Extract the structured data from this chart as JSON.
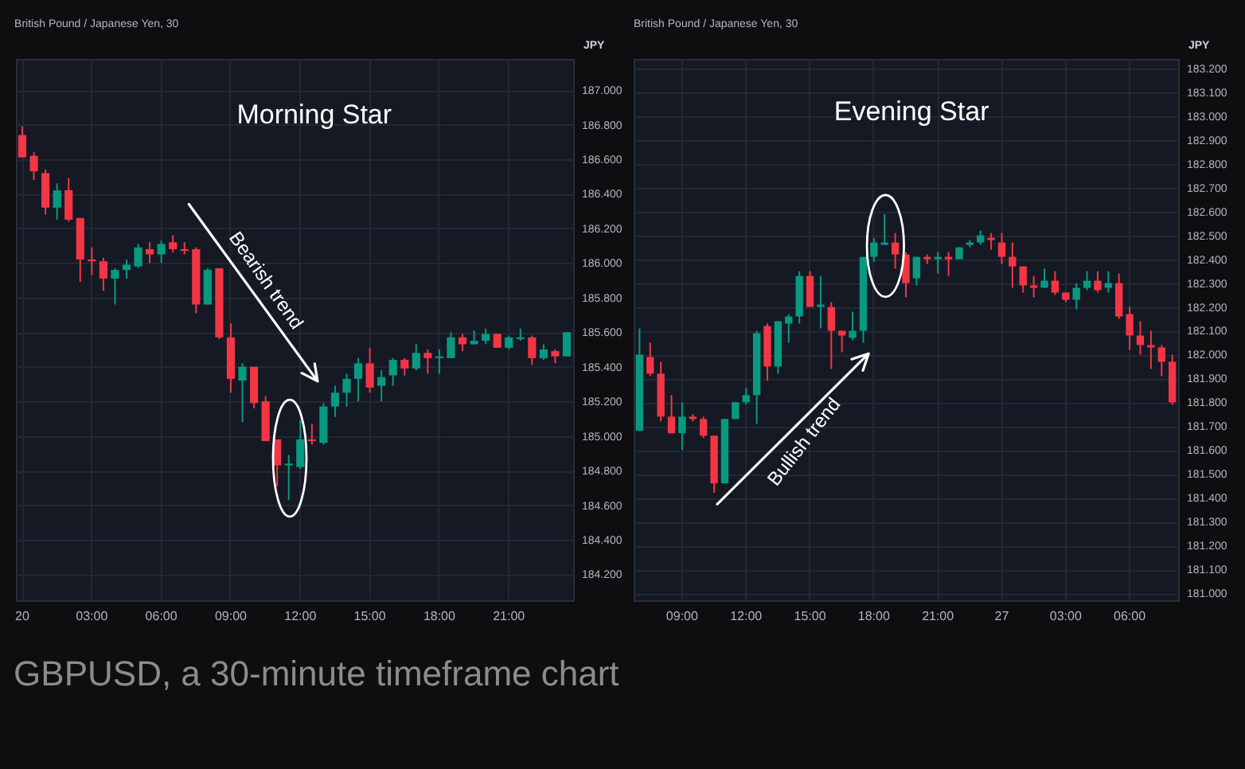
{
  "chart_data": [
    {
      "type": "candlestick",
      "subtitle": "British Pound / Japanese Yen, 30",
      "ylabel": "JPY",
      "grid": true,
      "ylim": [
        184.05,
        187.18
      ],
      "yticks": [
        {
          "value": 184.2,
          "label": "184.200"
        },
        {
          "value": 184.4,
          "label": "184.400"
        },
        {
          "value": 184.6,
          "label": "184.600"
        },
        {
          "value": 184.8,
          "label": "184.800"
        },
        {
          "value": 185,
          "label": "185.000"
        },
        {
          "value": 185.2,
          "label": "185.200"
        },
        {
          "value": 185.4,
          "label": "185.400"
        },
        {
          "value": 185.6,
          "label": "185.600"
        },
        {
          "value": 185.8,
          "label": "185.800"
        },
        {
          "value": 186,
          "label": "186.000"
        },
        {
          "value": 186.2,
          "label": "186.200"
        },
        {
          "value": 186.4,
          "label": "186.400"
        },
        {
          "value": 186.6,
          "label": "186.600"
        },
        {
          "value": 186.8,
          "label": "186.800"
        },
        {
          "value": 187,
          "label": "187.000"
        }
      ],
      "categories": [
        "20",
        null,
        null,
        null,
        null,
        null,
        "03:00",
        null,
        null,
        null,
        null,
        null,
        "06:00",
        null,
        null,
        null,
        null,
        null,
        "09:00",
        null,
        null,
        null,
        null,
        null,
        "12:00",
        null,
        null,
        null,
        null,
        null,
        "15:00",
        null,
        null,
        null,
        null,
        null,
        "18:00",
        null,
        null,
        null,
        null,
        null,
        "21:00",
        null,
        null,
        null,
        null,
        null
      ],
      "ohlc": [
        [
          186.74,
          186.79,
          186.61,
          186.61
        ],
        [
          186.62,
          186.64,
          186.48,
          186.53
        ],
        [
          186.52,
          186.54,
          186.28,
          186.32
        ],
        [
          186.32,
          186.46,
          186.25,
          186.42
        ],
        [
          186.42,
          186.49,
          186.24,
          186.25
        ],
        [
          186.26,
          186.26,
          185.89,
          186.02
        ],
        [
          186.02,
          186.09,
          185.93,
          186.01
        ],
        [
          186.01,
          186.03,
          185.84,
          185.91
        ],
        [
          185.91,
          185.97,
          185.76,
          185.96
        ],
        [
          185.96,
          186.02,
          185.91,
          185.99
        ],
        [
          185.98,
          186.11,
          185.97,
          186.09
        ],
        [
          186.08,
          186.12,
          186.0,
          186.05
        ],
        [
          186.05,
          186.13,
          186.0,
          186.11
        ],
        [
          186.12,
          186.16,
          186.06,
          186.08
        ],
        [
          186.08,
          186.12,
          186.05,
          186.07
        ],
        [
          186.08,
          186.09,
          185.71,
          185.76
        ],
        [
          185.76,
          185.97,
          185.76,
          185.96
        ],
        [
          185.97,
          185.97,
          185.56,
          185.57
        ],
        [
          185.57,
          185.65,
          185.25,
          185.33
        ],
        [
          185.32,
          185.42,
          185.08,
          185.4
        ],
        [
          185.4,
          185.4,
          185.16,
          185.19
        ],
        [
          185.2,
          185.23,
          184.97,
          184.97
        ],
        [
          184.98,
          184.98,
          184.71,
          184.83
        ],
        [
          184.83,
          184.89,
          184.63,
          184.84
        ],
        [
          184.82,
          185.09,
          184.81,
          184.98
        ],
        [
          184.98,
          185.07,
          184.95,
          184.97
        ],
        [
          184.96,
          185.19,
          184.95,
          185.17
        ],
        [
          185.17,
          185.29,
          185.11,
          185.25
        ],
        [
          185.25,
          185.36,
          185.17,
          185.33
        ],
        [
          185.33,
          185.45,
          185.2,
          185.42
        ],
        [
          185.42,
          185.51,
          185.25,
          185.28
        ],
        [
          185.29,
          185.38,
          185.2,
          185.34
        ],
        [
          185.35,
          185.45,
          185.29,
          185.44
        ],
        [
          185.44,
          185.45,
          185.35,
          185.39
        ],
        [
          185.39,
          185.53,
          185.38,
          185.48
        ],
        [
          185.48,
          185.5,
          185.36,
          185.45
        ],
        [
          185.45,
          185.5,
          185.36,
          185.46
        ],
        [
          185.45,
          185.6,
          185.45,
          185.57
        ],
        [
          185.57,
          185.59,
          185.49,
          185.53
        ],
        [
          185.53,
          185.61,
          185.53,
          185.55
        ],
        [
          185.55,
          185.62,
          185.53,
          185.59
        ],
        [
          185.59,
          185.59,
          185.51,
          185.51
        ],
        [
          185.51,
          185.58,
          185.5,
          185.57
        ],
        [
          185.56,
          185.62,
          185.55,
          185.57
        ],
        [
          185.57,
          185.58,
          185.41,
          185.45
        ],
        [
          185.45,
          185.53,
          185.44,
          185.5
        ],
        [
          185.49,
          185.5,
          185.42,
          185.46
        ],
        [
          185.46,
          185.6,
          185.46,
          185.6
        ]
      ],
      "colors": [
        "#f23645",
        "#f23645",
        "#f23645",
        "#089981",
        "#f23645",
        "#f23645",
        "#f23645",
        "#f23645",
        "#089981",
        "#089981",
        "#089981",
        "#f23645",
        "#089981",
        "#f23645",
        "#f23645",
        "#f23645",
        "#089981",
        "#f23645",
        "#f23645",
        "#089981",
        "#f23645",
        "#f23645",
        "#f23645",
        "#089981",
        "#089981",
        "#f23645",
        "#089981",
        "#089981",
        "#089981",
        "#089981",
        "#f23645",
        "#089981",
        "#089981",
        "#f23645",
        "#089981",
        "#f23645",
        "#089981",
        "#089981",
        "#f23645",
        "#089981",
        "#089981",
        "#f23645",
        "#089981",
        "#089981",
        "#f23645",
        "#089981",
        "#f23645",
        "#089981"
      ],
      "annotations": [
        "Morning Star",
        "Bearish trend",
        "GBPUSD, a 30-minute timeframe chart"
      ]
    },
    {
      "type": "candlestick",
      "subtitle": "British Pound / Japanese Yen, 30",
      "ylabel": "JPY",
      "grid": true,
      "ylim": [
        180.97,
        183.24
      ],
      "yticks": [
        {
          "value": 181,
          "label": "181.000"
        },
        {
          "value": 181.1,
          "label": "181.100"
        },
        {
          "value": 181.2,
          "label": "181.200"
        },
        {
          "value": 181.3,
          "label": "181.300"
        },
        {
          "value": 181.4,
          "label": "181.400"
        },
        {
          "value": 181.5,
          "label": "181.500"
        },
        {
          "value": 181.6,
          "label": "181.600"
        },
        {
          "value": 181.7,
          "label": "181.700"
        },
        {
          "value": 181.8,
          "label": "181.800"
        },
        {
          "value": 181.9,
          "label": "181.900"
        },
        {
          "value": 182,
          "label": "182.000"
        },
        {
          "value": 182.1,
          "label": "182.100"
        },
        {
          "value": 182.2,
          "label": "182.200"
        },
        {
          "value": 182.3,
          "label": "182.300"
        },
        {
          "value": 182.4,
          "label": "182.400"
        },
        {
          "value": 182.5,
          "label": "182.500"
        },
        {
          "value": 182.6,
          "label": "182.600"
        },
        {
          "value": 182.7,
          "label": "182.700"
        },
        {
          "value": 182.8,
          "label": "182.800"
        },
        {
          "value": 182.9,
          "label": "182.900"
        },
        {
          "value": 183,
          "label": "183.000"
        },
        {
          "value": 183.1,
          "label": "183.100"
        },
        {
          "value": 183.2,
          "label": "183.200"
        }
      ],
      "categories": [
        null,
        null,
        null,
        null,
        "09:00",
        null,
        null,
        null,
        null,
        null,
        "12:00",
        null,
        null,
        null,
        null,
        null,
        "15:00",
        null,
        null,
        null,
        null,
        null,
        "18:00",
        null,
        null,
        null,
        null,
        null,
        "21:00",
        null,
        null,
        null,
        null,
        null,
        "27",
        null,
        null,
        null,
        null,
        null,
        "03:00",
        null,
        null,
        null,
        null,
        null,
        "06:00",
        null,
        null,
        null,
        null
      ],
      "ohlc": [
        [
          181.68,
          182.11,
          181.68,
          182.0
        ],
        [
          181.99,
          182.05,
          181.91,
          181.92
        ],
        [
          181.92,
          181.97,
          181.72,
          181.74
        ],
        [
          181.74,
          181.83,
          181.67,
          181.67
        ],
        [
          181.67,
          181.8,
          181.6,
          181.74
        ],
        [
          181.74,
          181.75,
          181.72,
          181.73
        ],
        [
          181.73,
          181.74,
          181.65,
          181.66
        ],
        [
          181.66,
          181.66,
          181.42,
          181.46
        ],
        [
          181.46,
          181.73,
          181.46,
          181.73
        ],
        [
          181.73,
          181.8,
          181.73,
          181.8
        ],
        [
          181.8,
          181.86,
          181.79,
          181.83
        ],
        [
          181.83,
          182.1,
          181.71,
          182.09
        ],
        [
          182.12,
          182.13,
          181.89,
          181.95
        ],
        [
          181.95,
          182.14,
          181.92,
          182.14
        ],
        [
          182.13,
          182.17,
          182.05,
          182.16
        ],
        [
          182.16,
          182.35,
          182.13,
          182.33
        ],
        [
          182.33,
          182.35,
          182.2,
          182.2
        ],
        [
          182.2,
          182.33,
          182.11,
          182.21
        ],
        [
          182.2,
          182.22,
          181.94,
          182.1
        ],
        [
          182.1,
          182.1,
          182.01,
          182.08
        ],
        [
          182.07,
          182.18,
          182.06,
          182.1
        ],
        [
          182.1,
          182.41,
          182.05,
          182.41
        ],
        [
          182.41,
          182.49,
          182.39,
          182.47
        ],
        [
          182.46,
          182.59,
          182.46,
          182.47
        ],
        [
          182.47,
          182.51,
          182.36,
          182.42
        ],
        [
          182.42,
          182.43,
          182.24,
          182.3
        ],
        [
          182.32,
          182.41,
          182.29,
          182.41
        ],
        [
          182.41,
          182.42,
          182.38,
          182.4
        ],
        [
          182.4,
          182.43,
          182.34,
          182.41
        ],
        [
          182.41,
          182.43,
          182.33,
          182.4
        ],
        [
          182.4,
          182.45,
          182.4,
          182.45
        ],
        [
          182.46,
          182.48,
          182.45,
          182.47
        ],
        [
          182.47,
          182.52,
          182.46,
          182.5
        ],
        [
          182.49,
          182.51,
          182.44,
          182.48
        ],
        [
          182.47,
          182.51,
          182.38,
          182.41
        ],
        [
          182.41,
          182.47,
          182.28,
          182.37
        ],
        [
          182.37,
          182.37,
          182.26,
          182.29
        ],
        [
          182.29,
          182.33,
          182.24,
          182.28
        ],
        [
          182.28,
          182.36,
          182.28,
          182.31
        ],
        [
          182.31,
          182.35,
          182.25,
          182.26
        ],
        [
          182.26,
          182.26,
          182.22,
          182.23
        ],
        [
          182.23,
          182.3,
          182.19,
          182.28
        ],
        [
          182.28,
          182.35,
          182.27,
          182.31
        ],
        [
          182.31,
          182.35,
          182.26,
          182.27
        ],
        [
          182.28,
          182.35,
          182.26,
          182.3
        ],
        [
          182.3,
          182.34,
          182.15,
          182.16
        ],
        [
          182.17,
          182.2,
          182.02,
          182.08
        ],
        [
          182.08,
          182.14,
          182.0,
          182.04
        ],
        [
          182.04,
          182.1,
          181.94,
          182.03
        ],
        [
          182.03,
          182.04,
          181.91,
          181.97
        ],
        [
          181.97,
          182.0,
          181.79,
          181.8
        ]
      ],
      "colors": [
        "#089981",
        "#f23645",
        "#f23645",
        "#f23645",
        "#089981",
        "#f23645",
        "#f23645",
        "#f23645",
        "#089981",
        "#089981",
        "#089981",
        "#089981",
        "#f23645",
        "#089981",
        "#089981",
        "#089981",
        "#f23645",
        "#089981",
        "#f23645",
        "#f23645",
        "#089981",
        "#089981",
        "#089981",
        "#089981",
        "#f23645",
        "#f23645",
        "#089981",
        "#f23645",
        "#089981",
        "#f23645",
        "#089981",
        "#089981",
        "#089981",
        "#f23645",
        "#f23645",
        "#f23645",
        "#f23645",
        "#f23645",
        "#089981",
        "#f23645",
        "#f23645",
        "#089981",
        "#089981",
        "#f23645",
        "#089981",
        "#f23645",
        "#f23645",
        "#f23645",
        "#f23645",
        "#f23645",
        "#f23645"
      ],
      "annotations": [
        "Evening Star",
        "Bullish trend"
      ]
    }
  ]
}
